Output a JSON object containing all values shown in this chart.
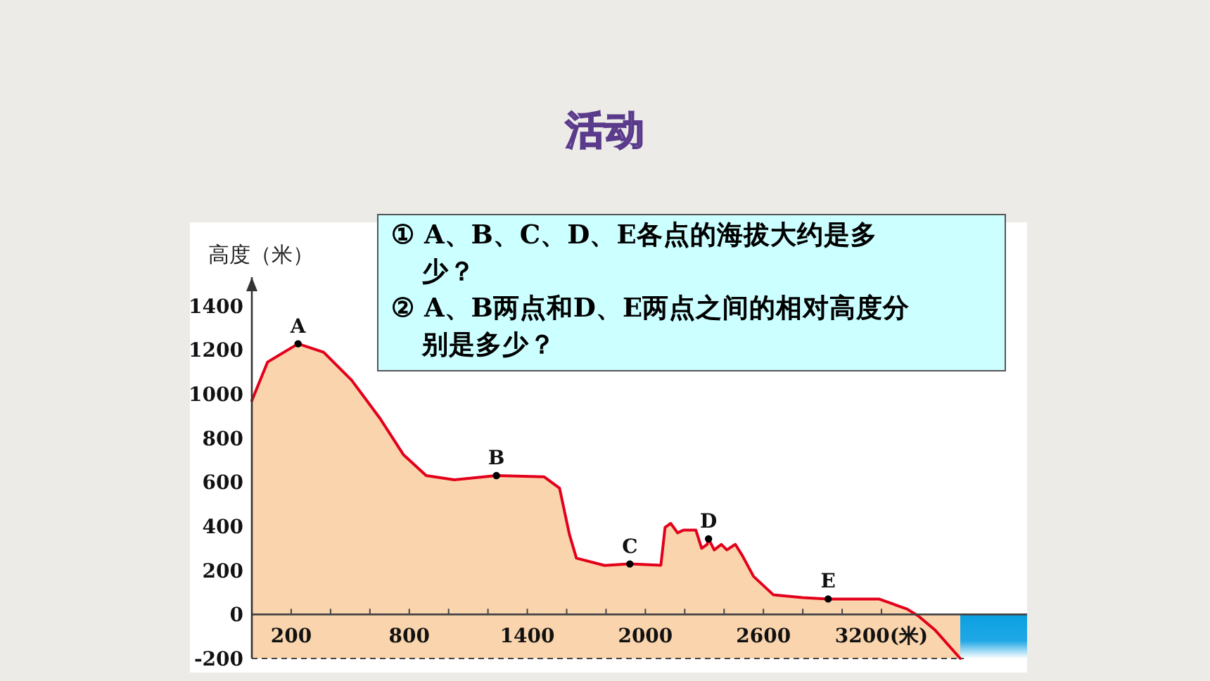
{
  "chart_data": {
    "type": "area",
    "title": "活动",
    "ylabel": "高度（米）",
    "x": [
      0,
      80,
      235,
      365,
      507,
      650,
      770,
      886,
      1029,
      1243,
      1486,
      1564,
      1614,
      1650,
      1793,
      1921,
      2079,
      2100,
      2129,
      2164,
      2193,
      2257,
      2286,
      2314,
      2321,
      2350,
      2386,
      2414,
      2457,
      2493,
      2550,
      2650,
      2800,
      2929,
      3186,
      3329,
      3386,
      3471,
      3600
    ],
    "series": [
      {
        "color": "#e3001b",
        "values": [
          970,
          1145,
          1228,
          1190,
          1063,
          891,
          725,
          630,
          611,
          630,
          624,
          573,
          363,
          255,
          222,
          229,
          223,
          395,
          413,
          370,
          382,
          382,
          300,
          318,
          343,
          293,
          318,
          293,
          318,
          267,
          172,
          89,
          76,
          70,
          70,
          25,
          -6,
          -70,
          -200
        ]
      }
    ],
    "xlim": [
      0,
      3940
    ],
    "xticks": [
      {
        "value": 200,
        "label": "200"
      },
      {
        "value": 400,
        "label": null
      },
      {
        "value": 600,
        "label": null
      },
      {
        "value": 800,
        "label": "800"
      },
      {
        "value": 1000,
        "label": null
      },
      {
        "value": 1200,
        "label": null
      },
      {
        "value": 1400,
        "label": "1400"
      },
      {
        "value": 1600,
        "label": null
      },
      {
        "value": 1800,
        "label": null
      },
      {
        "value": 2000,
        "label": "2000"
      },
      {
        "value": 2200,
        "label": null
      },
      {
        "value": 2400,
        "label": null
      },
      {
        "value": 2600,
        "label": "2600"
      },
      {
        "value": 2800,
        "label": null
      },
      {
        "value": 3000,
        "label": null
      },
      {
        "value": 3200,
        "label": "3200(米)"
      }
    ],
    "ylim": [
      -200,
      1530
    ],
    "yticks": [
      -200,
      0,
      200,
      400,
      600,
      800,
      1000,
      1200,
      1400
    ],
    "annotations": [
      {
        "text": "A",
        "x": 235,
        "y": 1228
      },
      {
        "text": "B",
        "x": 1243,
        "y": 630
      },
      {
        "text": "C",
        "x": 1921,
        "y": 229
      },
      {
        "text": "D",
        "x": 2321,
        "y": 343
      },
      {
        "text": "E",
        "x": 2929,
        "y": 70
      },
      "① A、B、C、D、E各点的海拔大约是多少？",
      "② A、B两点和D、E两点之间的相对高度分别是多少？"
    ]
  }
}
